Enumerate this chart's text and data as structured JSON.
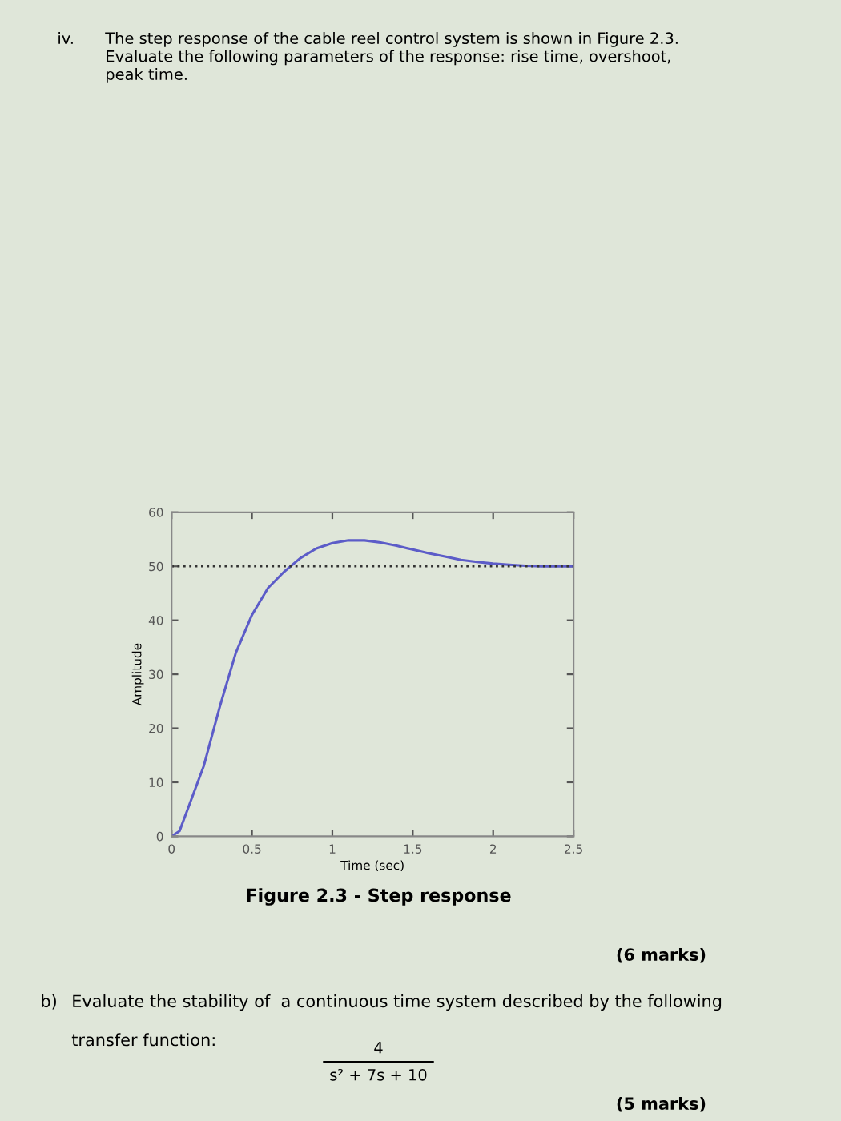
{
  "chart_data": {
    "type": "line",
    "title": "Figure 2.3 - Step response",
    "xlabel": "Time (sec)",
    "ylabel": "Amplitude",
    "x": [
      0,
      0.05,
      0.1,
      0.2,
      0.3,
      0.4,
      0.5,
      0.6,
      0.7,
      0.8,
      0.9,
      1.0,
      1.1,
      1.2,
      1.3,
      1.4,
      1.5,
      1.6,
      1.7,
      1.8,
      1.9,
      2.0,
      2.1,
      2.2,
      2.3,
      2.4,
      2.5
    ],
    "series": [
      {
        "color": "#5c5cc8",
        "values": [
          0,
          1,
          5,
          13,
          24,
          34,
          41,
          46,
          49,
          51.5,
          53.3,
          54.3,
          54.8,
          54.8,
          54.4,
          53.8,
          53.1,
          52.4,
          51.8,
          51.2,
          50.8,
          50.5,
          50.3,
          50.1,
          50.0,
          50.0,
          50.0
        ]
      }
    ],
    "xlim": [
      0,
      2.5
    ],
    "ylim": [
      0,
      60
    ],
    "xticks": [
      0,
      0.5,
      1,
      1.5,
      2,
      2.5
    ],
    "yticks": [
      0,
      10,
      20,
      30,
      40,
      50,
      60
    ],
    "ref_lines": [
      {
        "axis": "y",
        "value": 50,
        "color": "#333333",
        "line_style": "dotted"
      }
    ],
    "grid": false,
    "legend": false,
    "marker": "none",
    "line_style": "solid",
    "annotations": [
      "iv.",
      "The step response of the cable reel control system is shown in Figure 2.3.\nEvaluate the following parameters of the response: rise time, overshoot,\npeak time.",
      "(6 marks)",
      "b)",
      "Evaluate the stability of  a continuous time system described by the following\n\ntransfer function:",
      "4",
      "s² + 7s + 10",
      "(5 marks)"
    ]
  }
}
